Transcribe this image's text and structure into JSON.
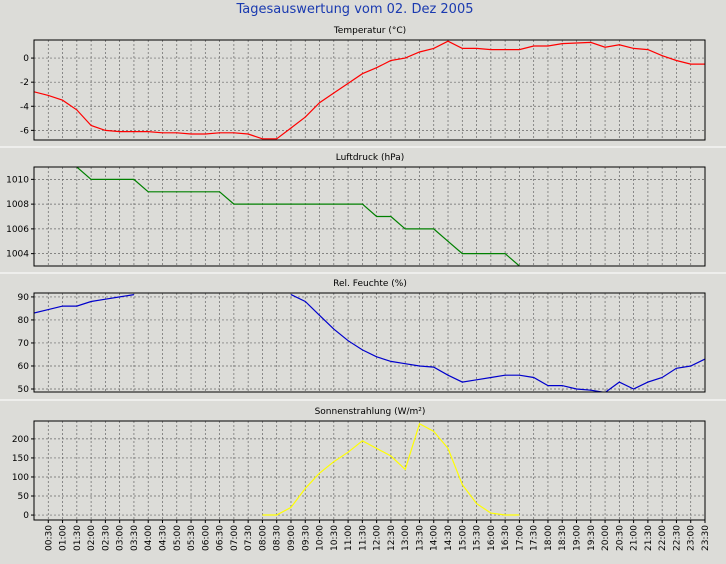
{
  "title": "Tagesauswertung vom 02. Dez 2005",
  "x_axis": {
    "xlim": [
      0,
      23.5
    ],
    "x": [
      0,
      0.5,
      1,
      1.5,
      2,
      2.5,
      3,
      3.5,
      4,
      4.5,
      5,
      5.5,
      6,
      6.5,
      7,
      7.5,
      8,
      8.5,
      9,
      9.5,
      10,
      10.5,
      11,
      11.5,
      12,
      12.5,
      13,
      13.5,
      14,
      14.5,
      15,
      15.5,
      16,
      16.5,
      17,
      17.5,
      18,
      18.5,
      19,
      19.5,
      20,
      20.5,
      21,
      21.5,
      22,
      22.5,
      23,
      23.5
    ],
    "xticks": [
      {
        "value": 0.5,
        "label": "00:30"
      },
      {
        "value": 1,
        "label": "01:00"
      },
      {
        "value": 1.5,
        "label": "01:30"
      },
      {
        "value": 2,
        "label": "02:00"
      },
      {
        "value": 2.5,
        "label": "02:30"
      },
      {
        "value": 3,
        "label": "03:00"
      },
      {
        "value": 3.5,
        "label": "03:30"
      },
      {
        "value": 4,
        "label": "04:00"
      },
      {
        "value": 4.5,
        "label": "04:30"
      },
      {
        "value": 5,
        "label": "05:00"
      },
      {
        "value": 5.5,
        "label": "05:30"
      },
      {
        "value": 6,
        "label": "06:00"
      },
      {
        "value": 6.5,
        "label": "06:30"
      },
      {
        "value": 7,
        "label": "07:00"
      },
      {
        "value": 7.5,
        "label": "07:30"
      },
      {
        "value": 8,
        "label": "08:00"
      },
      {
        "value": 8.5,
        "label": "08:30"
      },
      {
        "value": 9,
        "label": "09:00"
      },
      {
        "value": 9.5,
        "label": "09:30"
      },
      {
        "value": 10,
        "label": "10:00"
      },
      {
        "value": 10.5,
        "label": "10:30"
      },
      {
        "value": 11,
        "label": "11:00"
      },
      {
        "value": 11.5,
        "label": "11:30"
      },
      {
        "value": 12,
        "label": "12:00"
      },
      {
        "value": 12.5,
        "label": "12:30"
      },
      {
        "value": 13,
        "label": "13:00"
      },
      {
        "value": 13.5,
        "label": "13:30"
      },
      {
        "value": 14,
        "label": "14:00"
      },
      {
        "value": 14.5,
        "label": "14:30"
      },
      {
        "value": 15,
        "label": "15:00"
      },
      {
        "value": 15.5,
        "label": "15:30"
      },
      {
        "value": 16,
        "label": "16:00"
      },
      {
        "value": 16.5,
        "label": "16:30"
      },
      {
        "value": 17,
        "label": "17:00"
      },
      {
        "value": 17.5,
        "label": "17:30"
      },
      {
        "value": 18,
        "label": "18:00"
      },
      {
        "value": 18.5,
        "label": "18:30"
      },
      {
        "value": 19,
        "label": "19:00"
      },
      {
        "value": 19.5,
        "label": "19:30"
      },
      {
        "value": 20,
        "label": "20:00"
      },
      {
        "value": 20.5,
        "label": "20:30"
      },
      {
        "value": 21,
        "label": "21:00"
      },
      {
        "value": 21.5,
        "label": "21:30"
      },
      {
        "value": 22,
        "label": "22:00"
      },
      {
        "value": 22.5,
        "label": "22:30"
      },
      {
        "value": 23,
        "label": "23:00"
      },
      {
        "value": 23.5,
        "label": "23:30"
      }
    ]
  },
  "chart_data": [
    {
      "type": "line",
      "title": "Temperatur (°C)",
      "color": "#ff0000",
      "grid": true,
      "ylim": [
        -6.8,
        1.5
      ],
      "yticks": [
        -6,
        -4,
        -2,
        0
      ],
      "values": [
        -2.8,
        -3.1,
        -3.5,
        -4.3,
        -5.6,
        -6.0,
        -6.1,
        -6.1,
        -6.1,
        -6.2,
        -6.2,
        -6.3,
        -6.3,
        -6.2,
        -6.2,
        -6.3,
        -6.7,
        -6.7,
        -5.8,
        -4.9,
        -3.7,
        -2.9,
        -2.1,
        -1.3,
        -0.8,
        -0.2,
        0,
        0.5,
        0.8,
        1.4,
        0.8,
        0.8,
        0.7,
        0.7,
        0.7,
        1.0,
        1.0,
        1.2,
        1.25,
        1.3,
        0.9,
        1.1,
        0.8,
        0.7,
        0.2,
        -0.2,
        -0.5,
        -0.5
      ]
    },
    {
      "type": "line",
      "title": "Luftdruck (hPa)",
      "color": "#008000",
      "grid": true,
      "ylim": [
        1003,
        1011
      ],
      "yticks": [
        1004,
        1006,
        1008,
        1010
      ],
      "values": [
        null,
        null,
        null,
        1011,
        1010,
        1010,
        1010,
        1010,
        1009,
        1009,
        1009,
        1009,
        1009,
        1009,
        1008,
        1008,
        1008,
        1008,
        1008,
        1008,
        1008,
        1008,
        1008,
        1008,
        1007,
        1007,
        1006,
        1006,
        1006,
        1005,
        1004,
        1004,
        1004,
        1004,
        1003,
        null,
        null,
        null,
        null,
        null,
        null,
        null,
        null,
        null,
        null,
        null,
        null,
        null
      ]
    },
    {
      "type": "line",
      "title": "Rel. Feuchte (%)",
      "color": "#0000cc",
      "grid": true,
      "ylim": [
        48.7,
        91.7
      ],
      "yticks": [
        50,
        60,
        70,
        80,
        90
      ],
      "values": [
        83,
        84.5,
        86,
        86,
        88,
        89,
        90,
        91,
        null,
        null,
        null,
        null,
        null,
        null,
        null,
        null,
        null,
        null,
        91,
        88,
        82,
        76,
        71,
        67,
        64,
        62,
        61,
        60,
        59.5,
        56,
        53,
        54,
        55,
        56,
        56,
        55,
        51.5,
        51.5,
        50,
        49.5,
        48.5,
        53,
        50,
        53,
        55,
        59,
        60,
        63
      ]
    },
    {
      "type": "line",
      "title": "Sonnenstrahlung (W/m²)",
      "color": "#ffff00",
      "grid": true,
      "ylim": [
        -13,
        247
      ],
      "yticks": [
        0,
        50,
        100,
        150,
        200
      ],
      "values": [
        null,
        null,
        null,
        null,
        null,
        null,
        null,
        null,
        null,
        null,
        null,
        null,
        null,
        null,
        null,
        null,
        0,
        0,
        20,
        70,
        110,
        140,
        165,
        195,
        175,
        155,
        120,
        240,
        220,
        175,
        80,
        30,
        5,
        0,
        0,
        null,
        null,
        null,
        null,
        null,
        null,
        null,
        null,
        null,
        null,
        null,
        null,
        null
      ]
    }
  ]
}
